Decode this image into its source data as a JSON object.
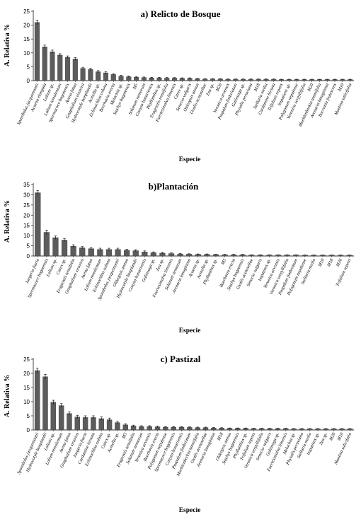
{
  "chart_data": [
    {
      "type": "bar",
      "title": "a) Relicto de Bosque",
      "xlabel": "Especie",
      "ylabel": "A. Relativa %",
      "ylim": [
        0,
        25
      ],
      "yticks": [
        0,
        5,
        10,
        15,
        20,
        25
      ],
      "error_bars": true,
      "categories": [
        "Sporobolus jacquemontii",
        "Acaena elongata",
        "Lolium sp.",
        "Lolium temulentum",
        "Spermacoce bogotensis",
        "Avena fatua",
        "Gnaphalium viravira",
        "Hydrocotyle bonplandii",
        "Acmella sp.",
        "Echinochloa colona",
        "Boerhavia erecta",
        "Melochia sp.",
        "Stachys bogotensis",
        "M5",
        "Solanum nemorum",
        "Conyza bonariensis",
        "Phyllanthus sp.",
        "Eragrostis tenuifolia",
        "Fuertesimalva limensis",
        "Carex sp.",
        "Senecio vulgaris",
        "Oldeopsis annua",
        "Oxalis acetosellae",
        "Zea sp.",
        "M26",
        "Veronica arvensis",
        "Paspalum fimbriatum",
        "Galinsoga sp.",
        "Physalis peruviana",
        "M18",
        "Stellaria media",
        "Cardamine hirsuta",
        "Trifolium repens",
        "Impatiens sp.",
        "Polygonum nepalense",
        "Veronica serpyllifolia",
        "M20",
        "Muehlenbeckia tamnifolia",
        "Arenaria lanuginosa",
        "Bocconia frutescens",
        "M10",
        "Montina salicifolia"
      ],
      "values": [
        21,
        12.2,
        10.4,
        9.2,
        8.4,
        7.8,
        4.4,
        4.0,
        3.2,
        2.8,
        2.2,
        1.6,
        1.4,
        1.2,
        1.1,
        1.0,
        1.0,
        0.9,
        0.9,
        0.8,
        0.8,
        0.7,
        0.6,
        0.6,
        0.6,
        0.5,
        0.5,
        0.5,
        0.5,
        0.5,
        0.5,
        0.5,
        0.4,
        0.4,
        0.4,
        0.4,
        0.4,
        0.4,
        0.4,
        0.4,
        0.4,
        0.4
      ],
      "errors": [
        0.8,
        0.6,
        0.6,
        0.5,
        0.5,
        0.5,
        0.4,
        0.4,
        0.4,
        0.4,
        0.3,
        0.3,
        0.3,
        0.2,
        0.2,
        0.2,
        0.2,
        0.2,
        0.2,
        0.2,
        0.2,
        0.1,
        0.1,
        0.1,
        0.1,
        0.1,
        0.1,
        0.1,
        0.1,
        0.1,
        0.1,
        0.1,
        0.1,
        0.1,
        0.1,
        0.1,
        0.1,
        0.1,
        0.1,
        0.1,
        0.1,
        0.1
      ]
    },
    {
      "type": "bar",
      "title": "b)Plantación",
      "xlabel": "Especie",
      "ylabel": "A. Relativa %",
      "ylim": [
        0,
        35
      ],
      "yticks": [
        0,
        5,
        10,
        15,
        20,
        25,
        30,
        35
      ],
      "error_bars": true,
      "categories": [
        "Juegeria fiaria",
        "Spermacoce bogotensis",
        "Lolium sp.",
        "Carex sp.",
        "Eragrostis tenuifolia",
        "Gnaphalium viravira",
        "Avena fatua",
        "Lolium temulentum",
        "Echinochloa colona",
        "Sporobolus jacquemontii",
        "Oldeopsis annua",
        "Hydrocotyle bonplandii",
        "Conyza bonariensis",
        "Galinsoga sp.",
        "Zea sp.",
        "Fuertesimalva limensis",
        "Solanum nemorum",
        "Arenaria lanuginosa",
        "Acaena sp.",
        "Acmella sp.",
        "Phyllanthus sp.",
        "M5",
        "Boerhavia erecta",
        "Stachys bogotensis",
        "Oxalis acetosellae",
        "Senecio vulgaris",
        "Impatiens sp.",
        "Veronica arvensis",
        "Veronica serpyllifolia",
        "Paspalum fimbriatum",
        "Polygonum nepalense",
        "Stellaria media",
        "M10",
        "M18",
        "M26",
        "Trifolium repens"
      ],
      "values": [
        31,
        11.6,
        9.0,
        7.8,
        4.8,
        4.0,
        3.6,
        3.2,
        3.2,
        3.2,
        2.8,
        2.6,
        2.0,
        1.6,
        1.4,
        1.2,
        1.0,
        0.9,
        0.8,
        0.8,
        0.7,
        0.6,
        0.6,
        0.6,
        0.5,
        0.5,
        0.5,
        0.5,
        0.5,
        0.5,
        0.4,
        0.4,
        0.4,
        0.4,
        0.4,
        0.4
      ],
      "errors": [
        1.0,
        1.0,
        0.8,
        0.8,
        0.7,
        0.6,
        0.6,
        0.6,
        0.6,
        0.6,
        0.5,
        0.5,
        0.5,
        0.4,
        0.4,
        0.3,
        0.3,
        0.2,
        0.2,
        0.2,
        0.2,
        0.2,
        0.2,
        0.2,
        0.1,
        0.1,
        0.1,
        0.1,
        0.1,
        0.1,
        0.1,
        0.1,
        0.1,
        0.1,
        0.1,
        0.1
      ]
    },
    {
      "type": "bar",
      "title": "c) Pastizal",
      "xlabel": "Especie",
      "ylabel": "A. Relativa %",
      "ylim": [
        0,
        25
      ],
      "yticks": [
        0,
        5,
        10,
        15,
        20,
        25
      ],
      "error_bars": true,
      "categories": [
        "Sporobolus jacquemontii",
        "Hydrocotyle bonplandii",
        "Lolium sp.",
        "Lolium temulentum",
        "Avena fatua",
        "Gnaphalium viravira",
        "Juegeria fiaria",
        "Cardamine hirsuta",
        "Echinochloa colona",
        "Carex sp.",
        "Acmella sp.",
        "M5",
        "Eragrostis tenuifolia",
        "Solanum nemorum",
        "Veronica arvensis",
        "Boerhavia erecta",
        "Polygonum nepalense",
        "Spermacoce bogotensis",
        "Conyza bonariensis",
        "Paspalum fimbriatum",
        "Muehlenbeckia tamnifolia",
        "Oxalis acetosellae",
        "Arenaria lanuginosa",
        "M18",
        "Oldeopsis annua",
        "Stachys bogotensis",
        "Phyllanthus sp.",
        "Trifolium repens",
        "Veronica serpyllifolia",
        "Senecio vulgaris",
        "Galinsoga sp.",
        "Fuertesimalva limensis",
        "Melochia sp.",
        "Physalis peruviana",
        "Stellaria media",
        "Impatiens sp.",
        "Zea sp.",
        "M20",
        "M10",
        "Montina salicifolia"
      ],
      "values": [
        21,
        18.8,
        9.8,
        8.6,
        5.8,
        4.6,
        4.4,
        4.4,
        4.0,
        3.6,
        2.6,
        1.8,
        1.4,
        1.2,
        1.2,
        1.1,
        1.0,
        1.0,
        1.0,
        0.9,
        0.8,
        0.8,
        0.7,
        0.7,
        0.6,
        0.6,
        0.6,
        0.5,
        0.5,
        0.5,
        0.5,
        0.5,
        0.4,
        0.4,
        0.4,
        0.4,
        0.4,
        0.4,
        0.4,
        0.4
      ],
      "errors": [
        0.8,
        0.8,
        0.7,
        0.7,
        0.6,
        0.6,
        0.6,
        0.6,
        0.6,
        0.6,
        0.5,
        0.4,
        0.3,
        0.3,
        0.3,
        0.3,
        0.2,
        0.2,
        0.2,
        0.2,
        0.2,
        0.2,
        0.2,
        0.1,
        0.1,
        0.1,
        0.1,
        0.1,
        0.1,
        0.1,
        0.1,
        0.1,
        0.1,
        0.1,
        0.1,
        0.1,
        0.1,
        0.1,
        0.1,
        0.1
      ]
    }
  ],
  "colors": {
    "bar": "#5c5c5c",
    "bar_edge": "#3a3a3a",
    "axis": "#333333",
    "text": "#000000"
  }
}
